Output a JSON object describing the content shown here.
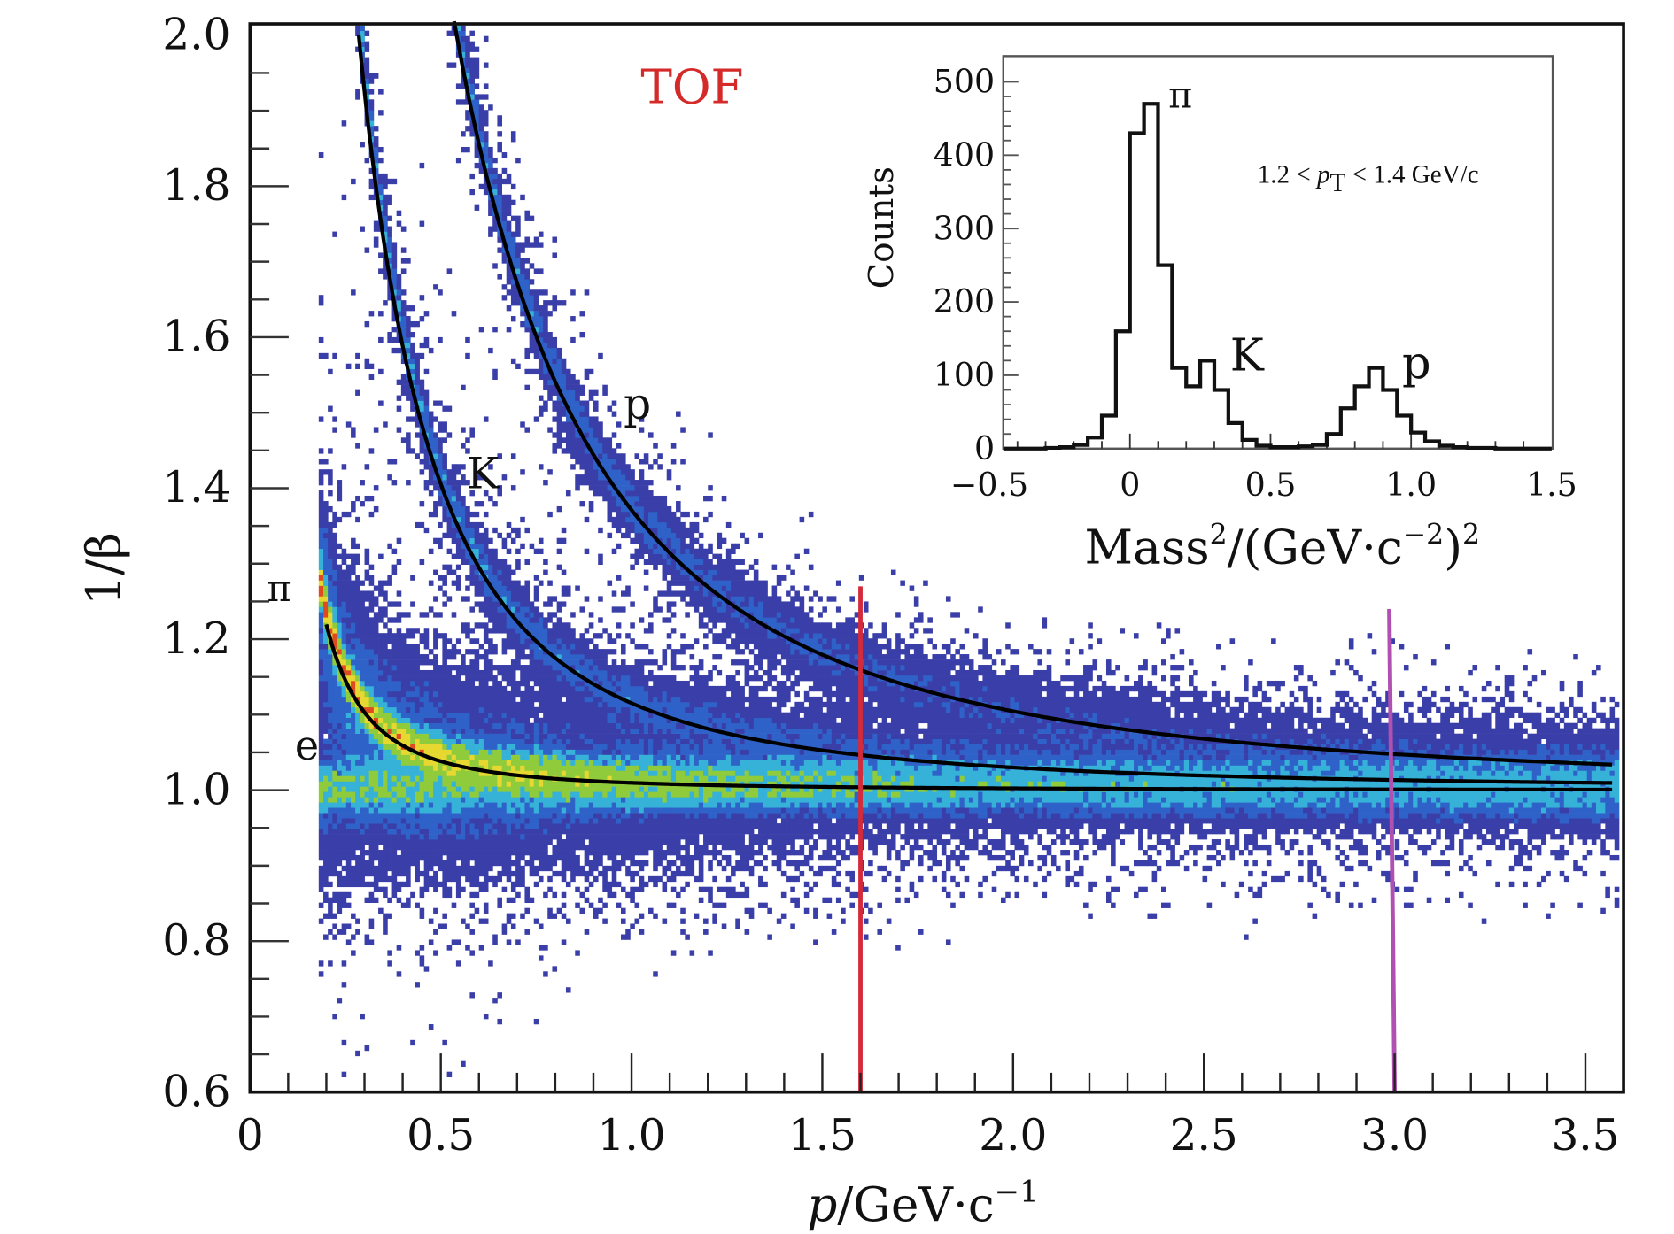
{
  "chart_data": [
    {
      "type": "heatmap",
      "xlabel": {
        "var": "p",
        "unit": "/GeV·c",
        "exp": "−1"
      },
      "ylabel": "1/β",
      "xlim": [
        0,
        3.6
      ],
      "ylim": [
        0.6,
        2.015
      ],
      "x_ticks": [
        "0",
        "0.5",
        "1.0",
        "1.5",
        "2.0",
        "2.5",
        "3.0",
        "3.5"
      ],
      "y_ticks": [
        "0.6",
        "0.8",
        "1.0",
        "1.2",
        "1.4",
        "1.6",
        "1.8",
        "2.0"
      ],
      "title_annotation": "TOF",
      "title_color": "#d42a2a",
      "bands": [
        {
          "label": "π",
          "mass": 0.1396
        },
        {
          "label": "K",
          "mass": 0.4937
        },
        {
          "label": "p",
          "mass": 0.938
        },
        {
          "label": "e",
          "mass": 0.000511
        }
      ],
      "p_min": 0.18,
      "vertical_lines": [
        {
          "x": 1.6,
          "y_top": 1.27,
          "color": "#d42a3a"
        },
        {
          "x": 3.0,
          "y_top": 1.24,
          "color": "#b050b0"
        }
      ],
      "colorscale": [
        "#3a3ea8",
        "#2f62c8",
        "#36b2d8",
        "#8fcb3a",
        "#e6d830",
        "#e04a20"
      ]
    },
    {
      "type": "line",
      "xlabel": {
        "base": "Mass",
        "exp1": "2",
        "mid": "/(GeV·c",
        "exp2": "−2",
        "close": ")",
        "exp3": "2"
      },
      "ylabel": "Counts",
      "xlim": [
        -0.5,
        1.5
      ],
      "ylim": [
        0,
        520
      ],
      "x_ticks": [
        "−0.5",
        "0",
        "0.5",
        "1.0",
        "1.5"
      ],
      "y_ticks": [
        "0",
        "100",
        "200",
        "300",
        "400",
        "500"
      ],
      "annotation": {
        "prefix": "1.2 < ",
        "var": "p",
        "sub": "T",
        "suffix": " < 1.4 GeV/c"
      },
      "bin_width": 0.05,
      "bin_start": -0.5,
      "values": [
        0,
        0,
        0,
        0,
        1,
        2,
        5,
        15,
        45,
        160,
        430,
        470,
        250,
        110,
        85,
        120,
        80,
        35,
        12,
        4,
        2,
        2,
        3,
        5,
        20,
        55,
        85,
        110,
        80,
        45,
        22,
        10,
        4,
        2,
        1,
        1,
        0,
        0,
        0,
        0
      ],
      "peak_labels": [
        {
          "label": "π",
          "x": 0.12,
          "y": 480
        },
        {
          "label": "K",
          "x": 0.33,
          "y": 120
        },
        {
          "label": "p",
          "x": 0.95,
          "y": 105
        }
      ]
    }
  ]
}
